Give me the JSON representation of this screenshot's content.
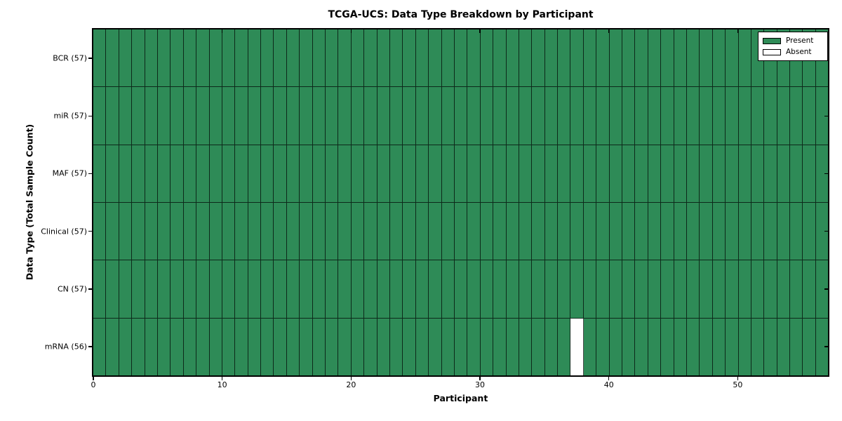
{
  "title": "TCGA-UCS: Data Type Breakdown by Participant",
  "axes": {
    "xlabel": "Participant",
    "ylabel": "Data Type (Total Sample Count)"
  },
  "legend": {
    "items": [
      {
        "label": "Present",
        "color": "#2E8B57"
      },
      {
        "label": "Absent",
        "color": "#FFFFFF"
      }
    ]
  },
  "colors": {
    "present": "#2E8B57",
    "absent": "#FFFFFF",
    "grid_line": "rgba(0,0,0,0.7)",
    "axis_line": "#000000",
    "background": "#FFFFFF"
  },
  "chart_data": {
    "type": "heatmap",
    "title": "TCGA-UCS: Data Type Breakdown by Participant",
    "xlabel": "Participant",
    "ylabel": "Data Type (Total Sample Count)",
    "x_range": [
      0,
      57
    ],
    "x_ticks": [
      0,
      10,
      20,
      30,
      40,
      50
    ],
    "n_participants": 57,
    "rows": [
      {
        "label": "BCR (57)",
        "data_type": "BCR",
        "sample_count": 57,
        "absent_participant_indices": []
      },
      {
        "label": "miR (57)",
        "data_type": "miR",
        "sample_count": 57,
        "absent_participant_indices": []
      },
      {
        "label": "MAF (57)",
        "data_type": "MAF",
        "sample_count": 57,
        "absent_participant_indices": []
      },
      {
        "label": "Clinical (57)",
        "data_type": "Clinical",
        "sample_count": 57,
        "absent_participant_indices": []
      },
      {
        "label": "CN (57)",
        "data_type": "CN",
        "sample_count": 57,
        "absent_participant_indices": []
      },
      {
        "label": "mRNA (56)",
        "data_type": "mRNA",
        "sample_count": 56,
        "absent_participant_indices": [
          37
        ]
      }
    ],
    "cell_values_legend": {
      "1": "Present",
      "0": "Absent"
    },
    "legend_entries": [
      "Present",
      "Absent"
    ],
    "legend_position": "upper right",
    "grid": "cell-borders"
  }
}
